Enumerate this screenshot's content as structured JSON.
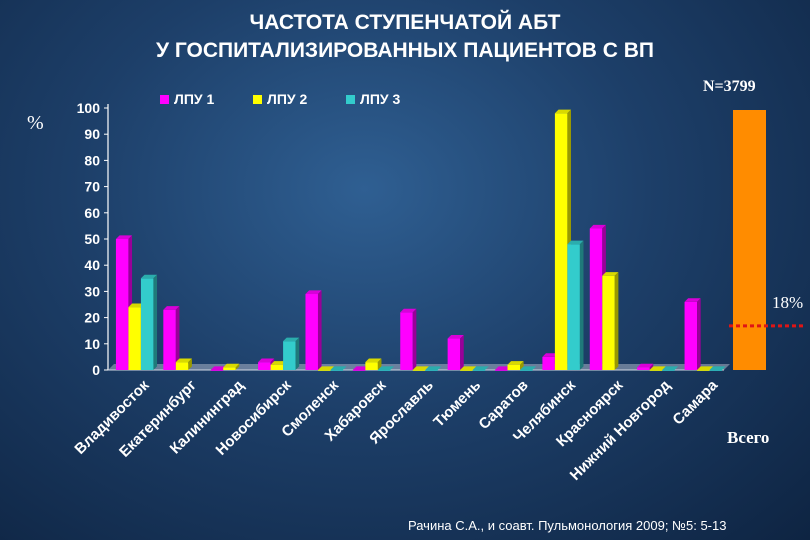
{
  "title": {
    "line1": "ЧАСТОТА СТУПЕНЧАТОЙ АБТ",
    "line2": "У ГОСПИТАЛИЗИРОВАННЫХ ПАЦИЕНТОВ С ВП"
  },
  "n_label": "N=3799",
  "percent_label": "%",
  "source": "Рачина С.А., и соавт. Пульмонология 2009; №5: 5-13",
  "chart_data": {
    "type": "bar",
    "categories": [
      "Владивосток",
      "Екатеринбург",
      "Калининград",
      "Новосибирск",
      "Смоленск",
      "Хабаровск",
      "Ярославль",
      "Тюмень",
      "Саратов",
      "Челябинск",
      "Красноярск",
      "Нижний Новгород",
      "Самара"
    ],
    "series": [
      {
        "name": "ЛПУ 1",
        "color": "#ff00ff",
        "values": [
          50,
          23,
          0,
          3,
          29,
          0,
          22,
          12,
          0,
          5,
          54,
          1,
          26
        ]
      },
      {
        "name": "ЛПУ 2",
        "color": "#ffff00",
        "values": [
          24,
          3,
          1,
          2,
          0,
          3,
          0,
          0,
          2,
          98,
          36,
          0,
          0
        ]
      },
      {
        "name": "ЛПУ 3",
        "color": "#33cccc",
        "values": [
          35,
          null,
          null,
          11,
          0,
          0,
          0,
          0,
          0,
          48,
          null,
          0,
          0
        ]
      }
    ],
    "yticks": [
      "0",
      "10",
      "20",
      "30",
      "40",
      "50",
      "60",
      "70",
      "80",
      "90",
      "100"
    ],
    "ylim": [
      0,
      100
    ],
    "legend_position": "top",
    "total": {
      "label": "Всего",
      "value": 18,
      "value_label": "18%",
      "bar_value": 100,
      "color": "#ff8c00"
    }
  }
}
